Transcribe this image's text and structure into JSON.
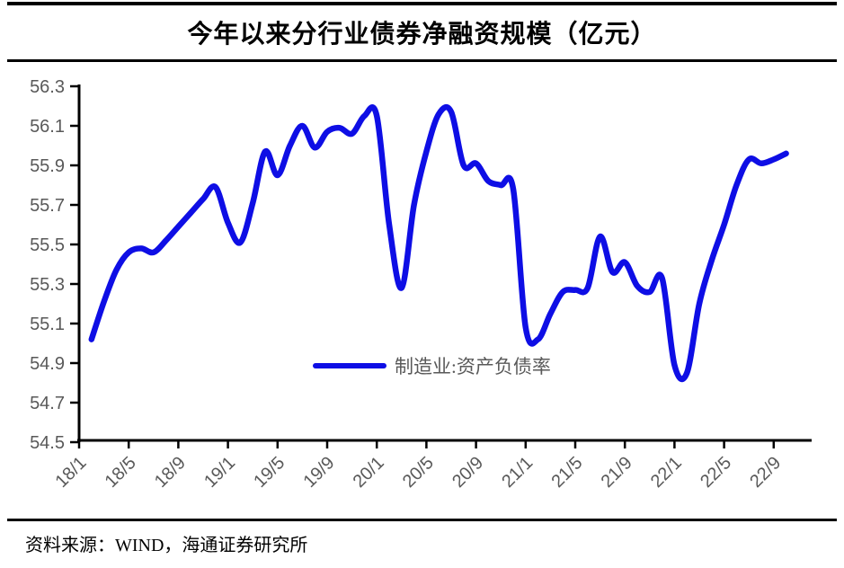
{
  "page": {
    "title": "今年以来分行业债券净融资规模（亿元）",
    "source_note": "资料来源：WIND，海通证券研究所"
  },
  "chart_data": {
    "type": "line",
    "title": "今年以来分行业债券净融资规模（亿元）",
    "xlabel": "",
    "ylabel": "",
    "ylim": [
      54.5,
      56.3
    ],
    "y_tick_step": 0.2,
    "y_tick_labels": [
      "54.5",
      "54.7",
      "54.9",
      "55.1",
      "55.3",
      "55.5",
      "55.7",
      "55.9",
      "56.1",
      "56.3"
    ],
    "x_tick_labels": [
      "18/1",
      "18/5",
      "18/9",
      "19/1",
      "19/5",
      "19/9",
      "20/1",
      "20/5",
      "20/9",
      "21/1",
      "21/5",
      "21/9",
      "22/1",
      "22/5",
      "22/9"
    ],
    "x_tick_month_index": [
      0,
      4,
      8,
      12,
      16,
      20,
      24,
      28,
      32,
      36,
      40,
      44,
      48,
      52,
      56
    ],
    "grid": false,
    "axis_color": "#000000",
    "tick_label_color": "#595959",
    "legend": {
      "label": "制造业:资产负债率",
      "position": "inside-bottom-center"
    },
    "series": [
      {
        "name": "制造业:资产负债率",
        "color": "#0E0EE5",
        "x_month_labels": [
          "18/2",
          "18/3",
          "18/4",
          "18/5",
          "18/6",
          "18/7",
          "18/8",
          "18/9",
          "18/10",
          "18/11",
          "18/12",
          "19/1",
          "19/2",
          "19/3",
          "19/4",
          "19/5",
          "19/6",
          "19/7",
          "19/8",
          "19/9",
          "19/10",
          "19/11",
          "19/12",
          "20/1",
          "20/2",
          "20/3",
          "20/4",
          "20/5",
          "20/6",
          "20/7",
          "20/8",
          "20/9",
          "20/10",
          "20/11",
          "20/12",
          "21/1",
          "21/2",
          "21/3",
          "21/4",
          "21/5",
          "21/6",
          "21/7",
          "21/8",
          "21/9",
          "21/10",
          "21/11",
          "21/12",
          "22/1",
          "22/2",
          "22/3",
          "22/4",
          "22/5",
          "22/6",
          "22/7",
          "22/8",
          "22/9",
          "22/10"
        ],
        "month_index": [
          1,
          2,
          3,
          4,
          5,
          6,
          7,
          8,
          9,
          10,
          11,
          12,
          13,
          14,
          15,
          16,
          17,
          18,
          19,
          20,
          21,
          22,
          23,
          24,
          25,
          26,
          27,
          28,
          29,
          30,
          31,
          32,
          33,
          34,
          35,
          36,
          37,
          38,
          39,
          40,
          41,
          42,
          43,
          44,
          45,
          46,
          47,
          48,
          49,
          50,
          51,
          52,
          53,
          54,
          55,
          56,
          57
        ],
        "values": [
          55.02,
          55.21,
          55.37,
          55.46,
          55.48,
          55.46,
          55.52,
          55.59,
          55.66,
          55.73,
          55.79,
          55.61,
          55.51,
          55.71,
          55.97,
          55.85,
          56.0,
          56.1,
          55.99,
          56.07,
          56.09,
          56.06,
          56.15,
          56.15,
          55.6,
          55.28,
          55.7,
          55.97,
          56.16,
          56.17,
          55.9,
          55.91,
          55.82,
          55.8,
          55.78,
          55.08,
          55.02,
          55.15,
          55.26,
          55.27,
          55.28,
          55.54,
          55.36,
          55.41,
          55.29,
          55.26,
          55.33,
          54.89,
          54.85,
          55.2,
          55.42,
          55.6,
          55.8,
          55.93,
          55.91,
          55.93,
          55.96
        ]
      }
    ]
  }
}
